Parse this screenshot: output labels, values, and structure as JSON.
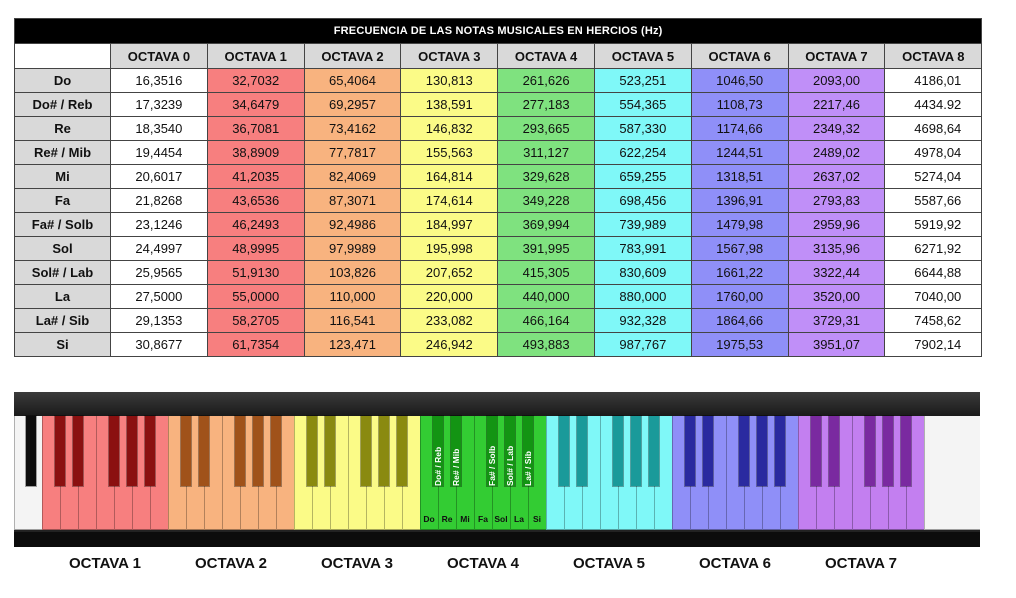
{
  "title": "FRECUENCIA DE LAS NOTAS MUSICALES EN HERCIOS (Hz)",
  "headers": [
    "OCTAVA 0",
    "OCTAVA 1",
    "OCTAVA 2",
    "OCTAVA 3",
    "OCTAVA 4",
    "OCTAVA 5",
    "OCTAVA 6",
    "OCTAVA 7",
    "OCTAVA 8"
  ],
  "octave_colors": [
    "#ffffff",
    "#f77f7f",
    "#f8b37f",
    "#fbfb87",
    "#7fe27f",
    "#7ff8f8",
    "#8f8ff8",
    "#c08ff8",
    "#ffffff"
  ],
  "rows": [
    {
      "note": "Do",
      "values": [
        "16,3516",
        "32,7032",
        "65,4064",
        "130,813",
        "261,626",
        "523,251",
        "1046,50",
        "2093,00",
        "4186,01"
      ]
    },
    {
      "note": "Do# / Reb",
      "values": [
        "17,3239",
        "34,6479",
        "69,2957",
        "138,591",
        "277,183",
        "554,365",
        "1108,73",
        "2217,46",
        "4434.92"
      ]
    },
    {
      "note": "Re",
      "values": [
        "18,3540",
        "36,7081",
        "73,4162",
        "146,832",
        "293,665",
        "587,330",
        "1174,66",
        "2349,32",
        "4698,64"
      ]
    },
    {
      "note": "Re# / Mib",
      "values": [
        "19,4454",
        "38,8909",
        "77,7817",
        "155,563",
        "311,127",
        "622,254",
        "1244,51",
        "2489,02",
        "4978,04"
      ]
    },
    {
      "note": "Mi",
      "values": [
        "20,6017",
        "41,2035",
        "82,4069",
        "164,814",
        "329,628",
        "659,255",
        "1318,51",
        "2637,02",
        "5274,04"
      ]
    },
    {
      "note": "Fa",
      "values": [
        "21,8268",
        "43,6536",
        "87,3071",
        "174,614",
        "349,228",
        "698,456",
        "1396,91",
        "2793,83",
        "5587,66"
      ]
    },
    {
      "note": "Fa# / Solb",
      "values": [
        "23,1246",
        "46,2493",
        "92,4986",
        "184,997",
        "369,994",
        "739,989",
        "1479,98",
        "2959,96",
        "5919,92"
      ]
    },
    {
      "note": "Sol",
      "values": [
        "24,4997",
        "48,9995",
        "97,9989",
        "195,998",
        "391,995",
        "783,991",
        "1567,98",
        "3135,96",
        "6271,92"
      ]
    },
    {
      "note": "Sol# / Lab",
      "values": [
        "25,9565",
        "51,9130",
        "103,826",
        "207,652",
        "415,305",
        "830,609",
        "1661,22",
        "3322,44",
        "6644,88"
      ]
    },
    {
      "note": "La",
      "values": [
        "27,5000",
        "55,0000",
        "110,000",
        "220,000",
        "440,000",
        "880,000",
        "1760,00",
        "3520,00",
        "7040,00"
      ]
    },
    {
      "note": "La# / Sib",
      "values": [
        "29,1353",
        "58,2705",
        "116,541",
        "233,082",
        "466,164",
        "932,328",
        "1864,66",
        "3729,31",
        "7458,62"
      ]
    },
    {
      "note": "Si",
      "values": [
        "30,8677",
        "61,7354",
        "123,471",
        "246,942",
        "493,883",
        "987,767",
        "1975,53",
        "3951,07",
        "7902,14"
      ]
    }
  ],
  "piano": {
    "octave_colors": [
      "#f77f7f",
      "#f8b37f",
      "#fbfb87",
      "#33cc33",
      "#7ff8f8",
      "#8f8ff8",
      "#c37ff0"
    ],
    "octave_black_colors": [
      "#8b1010",
      "#a0521a",
      "#8a8a10",
      "#139413",
      "#1a9a9a",
      "#2a2aa0",
      "#7a2aa0"
    ],
    "black_key_labels": [
      "Do# / Reb",
      "Re# / Mib",
      "Fa# / Solb",
      "Sol# / Lab",
      "La# / Sib"
    ],
    "white_key_labels": [
      "Do",
      "Re",
      "Mi",
      "Fa",
      "Sol",
      "La",
      "Si"
    ]
  },
  "octave_captions": [
    "OCTAVA 1",
    "OCTAVA 2",
    "OCTAVA 3",
    "OCTAVA 4",
    "OCTAVA 5",
    "OCTAVA 6",
    "OCTAVA 7"
  ]
}
